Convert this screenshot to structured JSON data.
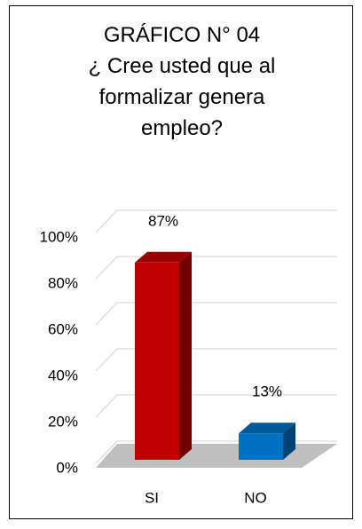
{
  "chart_data": {
    "type": "bar3d",
    "title": "GRÁFICO N° 04",
    "subtitle": "¿ Cree usted que al formalizar genera empleo?",
    "categories": [
      "SI",
      "NO"
    ],
    "values": [
      87,
      13
    ],
    "value_labels": [
      "87%",
      "13%"
    ],
    "colors": [
      "#c00000",
      "#0070c0"
    ],
    "ylim": [
      0,
      100
    ],
    "yticks": [
      {
        "value": 0,
        "label": "0%"
      },
      {
        "value": 20,
        "label": "20%"
      },
      {
        "value": 40,
        "label": "40%"
      },
      {
        "value": 60,
        "label": "60%"
      },
      {
        "value": 80,
        "label": "80%"
      },
      {
        "value": 100,
        "label": "100%"
      }
    ],
    "grid": true
  }
}
